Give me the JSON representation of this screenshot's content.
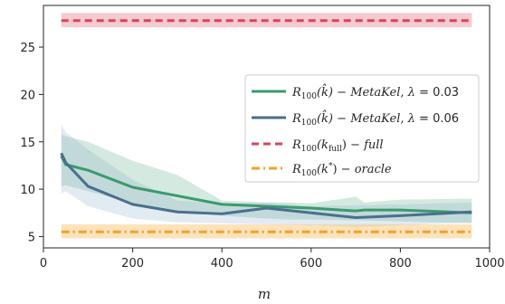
{
  "chart_data": {
    "type": "line",
    "xlabel": "m",
    "ylabel": "",
    "xlim": [
      0,
      1000
    ],
    "ylim": [
      3.8,
      29.4
    ],
    "xticks": [
      0,
      200,
      400,
      600,
      800,
      1000
    ],
    "yticks": [
      5,
      10,
      15,
      20,
      25
    ],
    "grid": false,
    "legend_placement": "center-right",
    "series": [
      {
        "name": "R100(k̂) − MetaKel, λ = 0.03",
        "color": "#3a9a6e",
        "band_color": "#3a9a6e",
        "x": [
          40,
          50,
          100,
          200,
          300,
          400,
          500,
          550,
          600,
          700,
          720,
          800,
          960
        ],
        "y": [
          13.5,
          12.6,
          12.0,
          10.2,
          9.3,
          8.4,
          8.2,
          8.1,
          8.0,
          7.7,
          7.8,
          7.8,
          7.5
        ],
        "lower": [
          10.3,
          10.4,
          9.8,
          8.5,
          7.6,
          7.2,
          6.9,
          6.8,
          6.8,
          6.7,
          6.7,
          6.6,
          6.4
        ],
        "upper": [
          15.8,
          15.6,
          15.0,
          13.0,
          11.5,
          8.8,
          8.6,
          8.6,
          8.5,
          9.2,
          8.6,
          8.9,
          9.0
        ]
      },
      {
        "name": "R100(k̂) − MetaKel, λ = 0.06",
        "color": "#4a6f8f",
        "band_color": "#7fa3c3",
        "x": [
          40,
          50,
          100,
          200,
          300,
          400,
          500,
          600,
          700,
          800,
          960
        ],
        "y": [
          13.8,
          12.8,
          10.3,
          8.4,
          7.6,
          7.4,
          8.0,
          7.5,
          7.0,
          7.2,
          7.6
        ],
        "lower": [
          9.5,
          9.8,
          8.2,
          6.9,
          6.5,
          6.4,
          6.3,
          6.2,
          6.0,
          6.2,
          6.5
        ],
        "upper": [
          16.8,
          16.0,
          14.2,
          11.0,
          8.8,
          8.5,
          8.6,
          8.2,
          8.3,
          8.4,
          8.6
        ]
      },
      {
        "name": "R100(kfull) − full",
        "color": "#d9445a",
        "band_color": "#e88a98",
        "dash": "8,5",
        "x": [
          40,
          960
        ],
        "y": [
          27.8,
          27.8
        ],
        "lower": [
          27.1,
          27.1
        ],
        "upper": [
          28.6,
          28.6
        ]
      },
      {
        "name": "R100(k*) − oracle",
        "color": "#f2a227",
        "band_color": "#f7c26b",
        "dash": "9,4,2,4",
        "x": [
          40,
          960
        ],
        "y": [
          5.5,
          5.5
        ],
        "lower": [
          4.8,
          4.8
        ],
        "upper": [
          6.3,
          6.3
        ]
      }
    ]
  },
  "legend": [
    {
      "math": "R",
      "sub": "100",
      "arg": "(k̂)",
      "dash": " − ",
      "method": "MetaKel",
      "lambda_sym": "λ",
      "lambda_val": "= 0.03"
    },
    {
      "math": "R",
      "sub": "100",
      "arg": "(k̂)",
      "dash": " − ",
      "method": "MetaKel",
      "lambda_sym": "λ",
      "lambda_val": "= 0.06"
    },
    {
      "math": "R",
      "sub": "100",
      "arg_open": "(k",
      "arg_sub": "full",
      "arg_close": ")",
      "dash": " − ",
      "method": "full"
    },
    {
      "math": "R",
      "sub": "100",
      "arg_open": "(k",
      "arg_sup": "*",
      "arg_close": ")",
      "dash": " − ",
      "method": "oracle"
    }
  ]
}
